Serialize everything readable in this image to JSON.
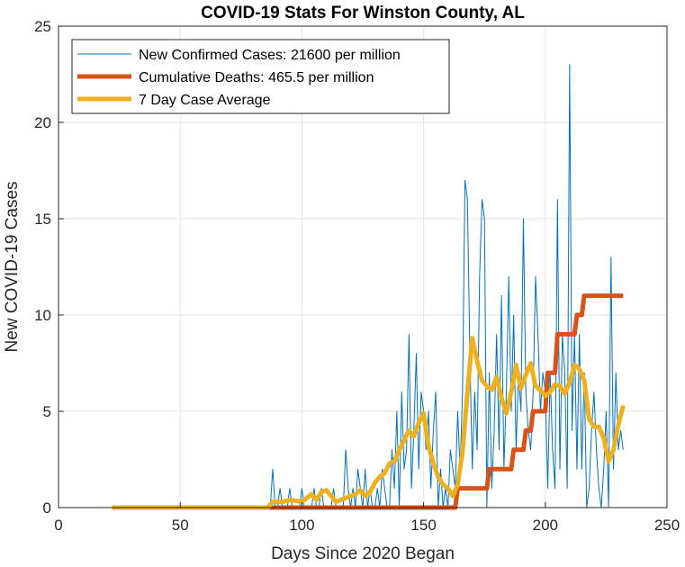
{
  "chart_data": {
    "type": "line",
    "title": "COVID-19 Stats For Winston County, AL",
    "xlabel": "Days Since 2020 Began",
    "ylabel": "New COVID-19 Cases",
    "xlim": [
      0,
      250
    ],
    "ylim": [
      0,
      25
    ],
    "xticks": [
      0,
      50,
      100,
      150,
      200,
      250
    ],
    "yticks": [
      0,
      5,
      10,
      15,
      20,
      25
    ],
    "grid": true,
    "legend_position": "top-left",
    "series": [
      {
        "name": "New Confirmed Cases: 21600 per million",
        "color": "#0072BD",
        "style": "thin",
        "x": [
          87,
          88,
          89,
          90,
          91,
          92,
          93,
          94,
          95,
          96,
          97,
          98,
          99,
          100,
          101,
          102,
          103,
          104,
          105,
          106,
          107,
          108,
          109,
          110,
          111,
          112,
          113,
          114,
          115,
          116,
          117,
          118,
          119,
          120,
          121,
          122,
          123,
          124,
          125,
          126,
          127,
          128,
          129,
          130,
          131,
          132,
          133,
          134,
          135,
          136,
          137,
          138,
          139,
          140,
          141,
          142,
          143,
          144,
          145,
          146,
          147,
          148,
          149,
          150,
          151,
          152,
          153,
          154,
          155,
          156,
          157,
          158,
          159,
          160,
          161,
          162,
          163,
          164,
          165,
          166,
          167,
          168,
          169,
          170,
          171,
          172,
          173,
          174,
          175,
          176,
          177,
          178,
          179,
          180,
          181,
          182,
          183,
          184,
          185,
          186,
          187,
          188,
          189,
          190,
          191,
          192,
          193,
          194,
          195,
          196,
          197,
          198,
          199,
          200,
          201,
          202,
          203,
          204,
          205,
          206,
          207,
          208,
          209,
          210,
          211,
          212,
          213,
          214,
          215,
          216,
          217,
          218,
          219,
          220,
          221,
          222,
          223,
          224,
          225,
          226,
          227,
          228,
          229,
          230,
          231,
          232
        ],
        "y": [
          0,
          2,
          0,
          0,
          1,
          0,
          0,
          0,
          1,
          0,
          0,
          0,
          0,
          1,
          0,
          0,
          0,
          0,
          1,
          0,
          0,
          1,
          0,
          0,
          0,
          0,
          1,
          0,
          0,
          0,
          0,
          3,
          1,
          0,
          1,
          0,
          2,
          1,
          0,
          2,
          0,
          1,
          0,
          0,
          1,
          0,
          2,
          1,
          0,
          0,
          3,
          1,
          5,
          0,
          6,
          2,
          3,
          9,
          1,
          4,
          8,
          2,
          6,
          5,
          3,
          5,
          1,
          4,
          6,
          0,
          2,
          0,
          1,
          0,
          3,
          2,
          1,
          5,
          2,
          6,
          17,
          16,
          8,
          2,
          6,
          3,
          12,
          16,
          15,
          0,
          7,
          1,
          4,
          9,
          3,
          11,
          2,
          6,
          12,
          5,
          10,
          3,
          7,
          5,
          15,
          6,
          4,
          3,
          6,
          12,
          9,
          5,
          7,
          6,
          1,
          7,
          3,
          1,
          16,
          2,
          9,
          7,
          1,
          23,
          4,
          9,
          2,
          9,
          2,
          7,
          0,
          1,
          4,
          6,
          3,
          1,
          0,
          2,
          5,
          0,
          13,
          2,
          7,
          3,
          4,
          3
        ],
        "y_rounded_note": ""
      },
      {
        "name": "Cumulative Deaths: 465.5 per million",
        "color": "#D95319",
        "style": "thick",
        "x": [
          22,
          92,
          163,
          164,
          172,
          173,
          176,
          177,
          186,
          187,
          191,
          192,
          194,
          195,
          200,
          201,
          204,
          205,
          212,
          213,
          215,
          216,
          232
        ],
        "y": [
          0,
          0,
          0,
          1,
          1,
          1,
          1,
          2,
          2,
          3,
          3,
          4,
          4,
          5,
          5,
          7,
          7,
          9,
          9,
          10,
          10,
          11,
          11
        ]
      },
      {
        "name": "7 Day Case Average",
        "color": "#EDB120",
        "style": "thick",
        "x": [
          22,
          86,
          88,
          92,
          95,
          100,
          104,
          106,
          108,
          110,
          112,
          114,
          116,
          118,
          120,
          122,
          124,
          126,
          128,
          130,
          132,
          134,
          136,
          138,
          140,
          142,
          144,
          146,
          148,
          150,
          152,
          154,
          156,
          158,
          160,
          162,
          164,
          166,
          168,
          170,
          172,
          174,
          176,
          178,
          180,
          182,
          184,
          186,
          188,
          190,
          192,
          194,
          196,
          198,
          200,
          202,
          204,
          206,
          208,
          210,
          212,
          214,
          216,
          218,
          220,
          222,
          224,
          226,
          228,
          230,
          232
        ],
        "y": [
          0,
          0,
          0.3,
          0.3,
          0.4,
          0.3,
          0.7,
          0.4,
          0.8,
          0.9,
          0.6,
          0.3,
          0.4,
          0.5,
          0.6,
          0.7,
          0.9,
          0.6,
          0.8,
          1.3,
          1.6,
          1.8,
          2.3,
          2.4,
          3.0,
          3.5,
          4.0,
          3.7,
          4.4,
          4.9,
          3.2,
          2.3,
          1.6,
          1.2,
          1.0,
          0.6,
          1.2,
          2.9,
          6.0,
          8.8,
          7.6,
          6.6,
          6.3,
          6.1,
          6.8,
          5.7,
          4.9,
          6.0,
          7.4,
          6.2,
          6.9,
          7.5,
          6.3,
          6.1,
          5.8,
          6.0,
          6.4,
          6.3,
          5.9,
          6.5,
          7.4,
          7.2,
          6.6,
          4.6,
          4.2,
          4.2,
          3.6,
          2.4,
          3.0,
          4.3,
          5.3
        ]
      }
    ]
  }
}
